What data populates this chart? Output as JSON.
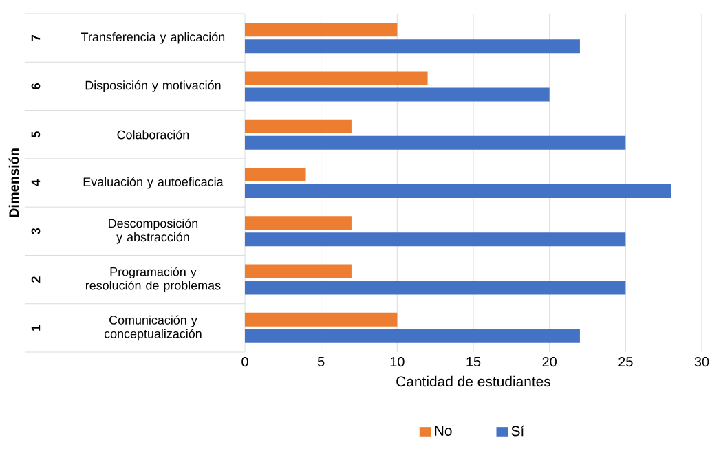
{
  "chart_data": {
    "type": "bar",
    "orientation": "horizontal",
    "xlabel": "Cantidad de estudiantes",
    "ylabel": "Dimensión",
    "categories": [
      "Transferencia y aplicación",
      "Disposición y motivación",
      "Colaboración",
      "Evaluación y autoeficacia",
      "Descomposición y abstracción",
      "Programación y resolución de problemas",
      "Comunicación y conceptualización"
    ],
    "annotations": [
      "7",
      "6",
      "5",
      "4",
      "3",
      "2",
      "1"
    ],
    "series": [
      {
        "name": "No",
        "color": "#ed7d31",
        "values": [
          10,
          12,
          7,
          4,
          7,
          7,
          10
        ]
      },
      {
        "name": "Sí",
        "color": "#4472c4",
        "values": [
          22,
          20,
          25,
          28,
          25,
          25,
          22
        ]
      }
    ],
    "xlim": [
      0,
      30
    ],
    "xticks": [
      0,
      5,
      10,
      15,
      20,
      25,
      30
    ],
    "grid": "x",
    "legend": "bottom"
  }
}
